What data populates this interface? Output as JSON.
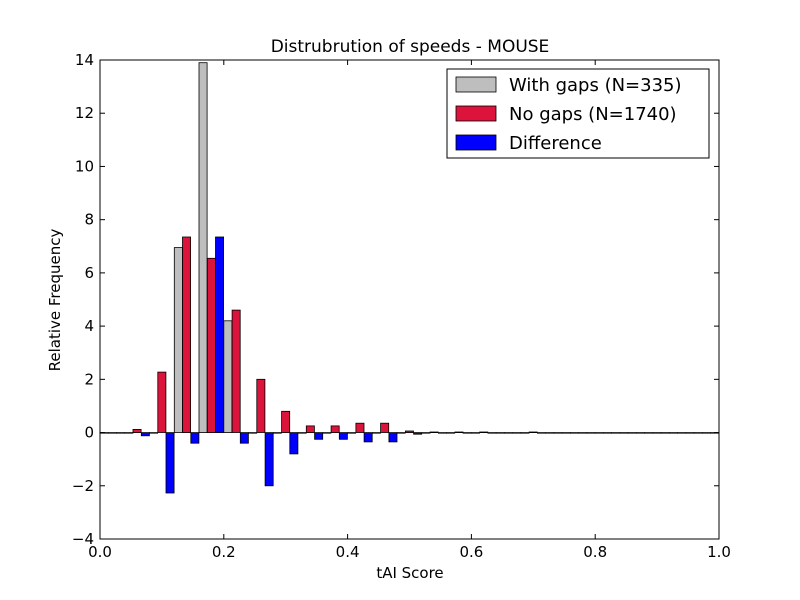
{
  "chart_data": {
    "type": "bar",
    "title": "Distrubrution of speeds - MOUSE",
    "xlabel": "tAI Score",
    "ylabel": "Relative Frequency",
    "xlim": [
      0.0,
      1.0
    ],
    "ylim": [
      -4,
      14
    ],
    "xticks": [
      "0.0",
      "0.2",
      "0.4",
      "0.6",
      "0.8",
      "1.0"
    ],
    "yticks": [
      "−4",
      "−2",
      "0",
      "2",
      "4",
      "6",
      "8",
      "10",
      "12",
      "14"
    ],
    "grid": false,
    "legend_position": "top-right",
    "bin_centers": [
      0.02,
      0.06,
      0.1,
      0.14,
      0.18,
      0.22,
      0.26,
      0.3,
      0.34,
      0.38,
      0.42,
      0.46,
      0.5,
      0.54,
      0.58,
      0.62,
      0.66,
      0.7,
      0.74,
      0.78,
      0.82,
      0.86,
      0.9,
      0.94,
      0.98
    ],
    "series": [
      {
        "name": "With gaps (N=335)",
        "color": "#bebebe",
        "values": [
          0,
          0,
          0,
          6.95,
          13.9,
          4.2,
          0,
          0,
          0,
          0,
          0,
          0,
          0,
          0,
          0,
          0,
          0,
          0,
          0,
          0,
          0,
          0,
          0,
          0,
          0
        ]
      },
      {
        "name": "No gaps (N=1740)",
        "color": "#dc143c",
        "values": [
          0,
          0.12,
          2.27,
          7.35,
          6.55,
          4.6,
          2.0,
          0.8,
          0.25,
          0.25,
          0.35,
          0.35,
          0.06,
          0.02,
          0.02,
          0.02,
          0,
          0.02,
          0,
          0,
          0,
          0,
          0,
          0,
          0
        ]
      },
      {
        "name": "Difference",
        "color": "#0000ff",
        "values": [
          0,
          -0.12,
          -2.27,
          -0.4,
          7.35,
          -0.4,
          -2.0,
          -0.8,
          -0.25,
          -0.25,
          -0.35,
          -0.35,
          -0.06,
          -0.02,
          -0.02,
          -0.02,
          0,
          -0.02,
          0,
          0,
          0,
          0,
          0,
          0,
          0
        ]
      }
    ]
  }
}
